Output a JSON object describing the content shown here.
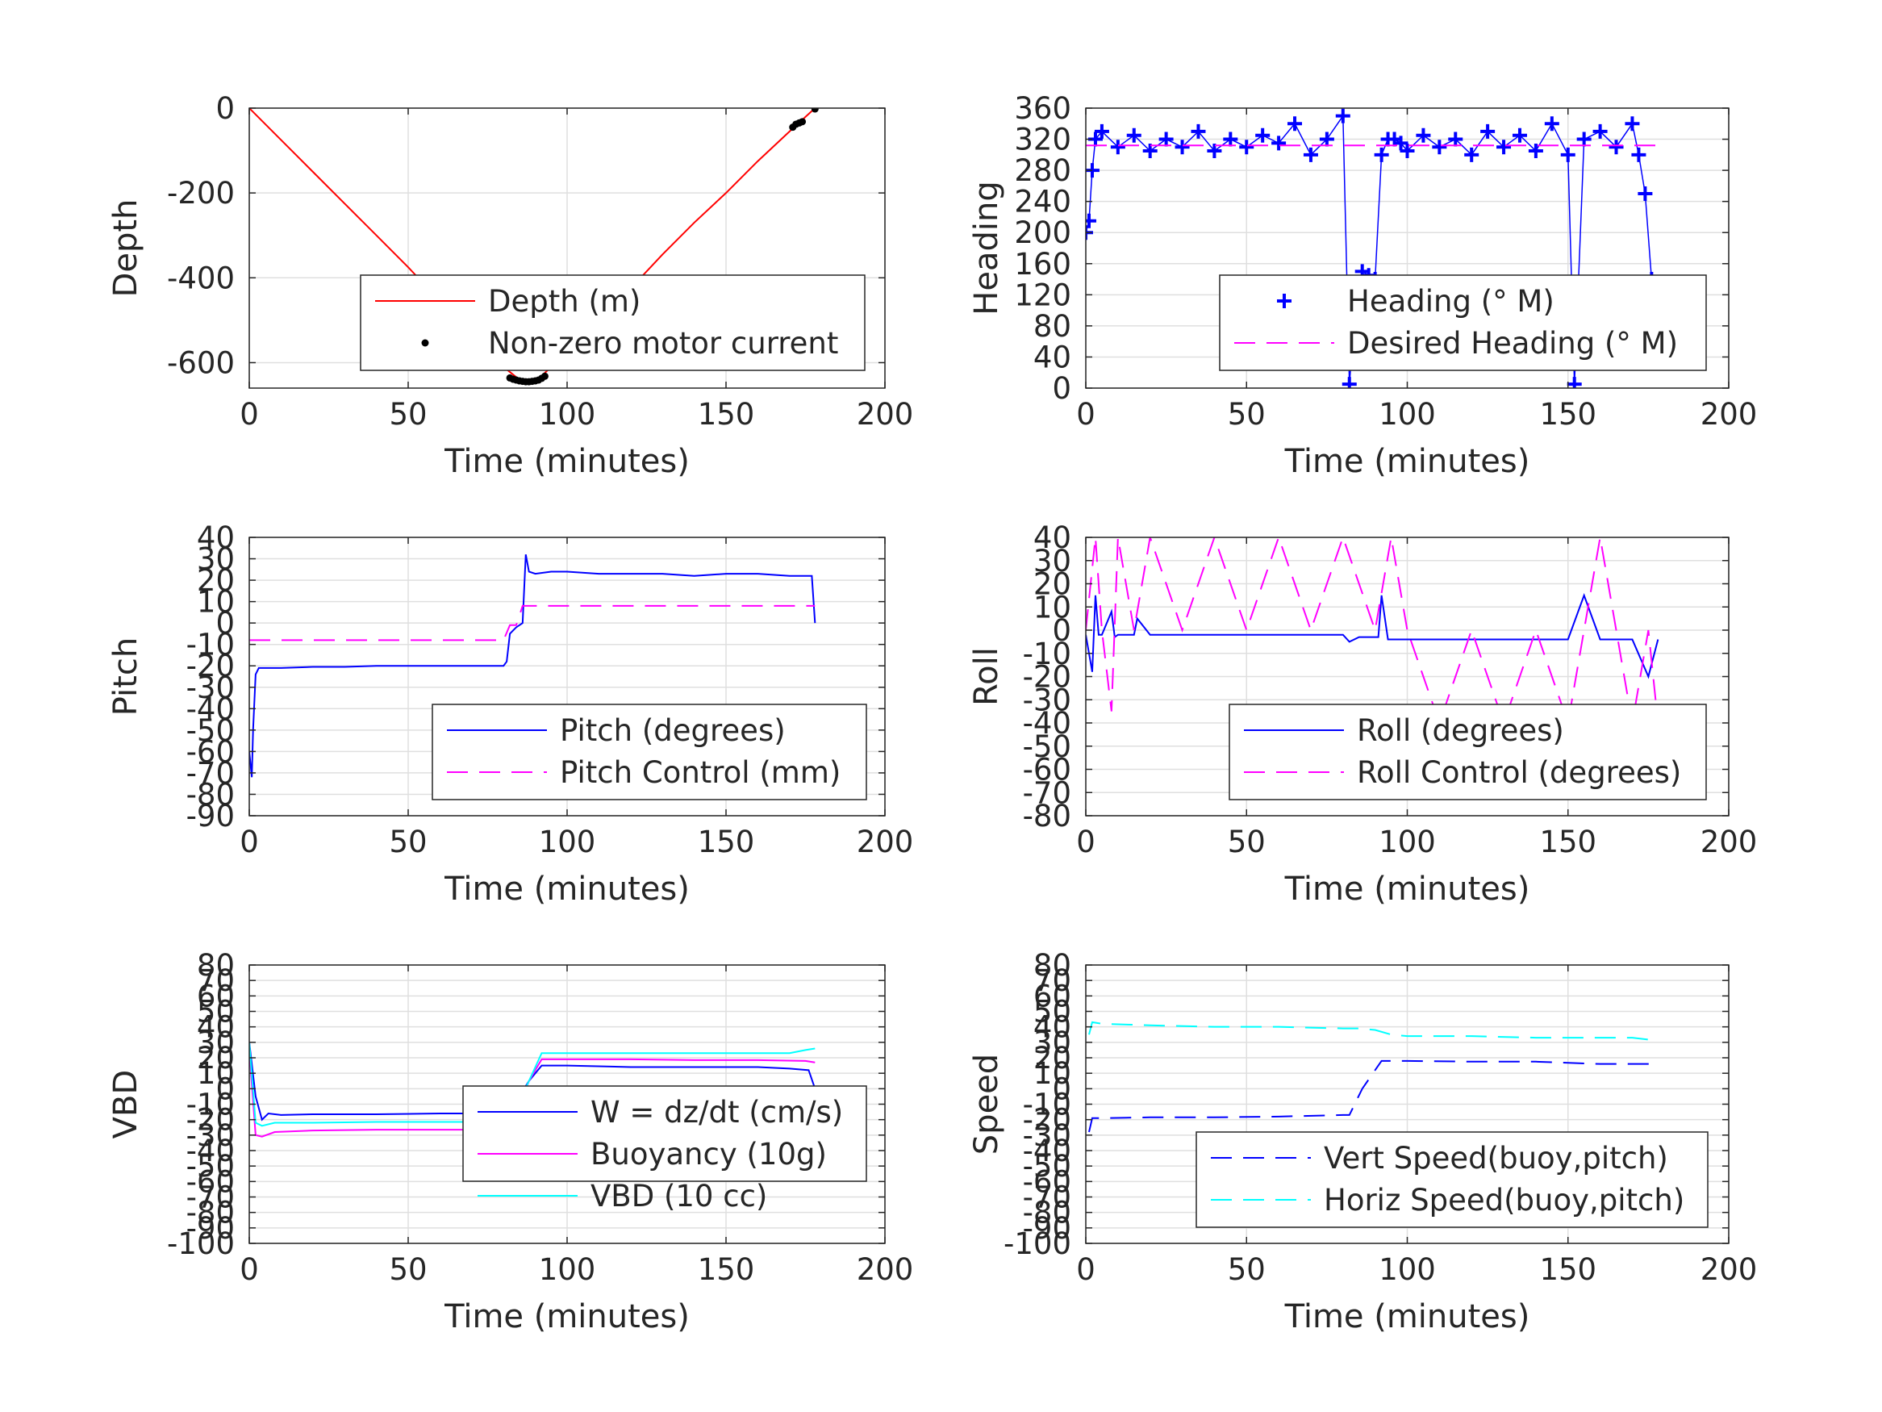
{
  "chart_data": [
    {
      "type": "line",
      "xlabel": "Time (minutes)",
      "ylabel": "Depth",
      "xlim": [
        0,
        200
      ],
      "ylim": [
        -660,
        0
      ],
      "xticks": [
        0,
        50,
        100,
        150,
        200
      ],
      "yticks": [
        0,
        -200,
        -400,
        -600
      ],
      "grid": true,
      "legend_position": "lower-right",
      "series": [
        {
          "name": "Depth (m)",
          "color": "#ff0000",
          "style": "solid",
          "x": [
            0,
            10,
            20,
            30,
            40,
            50,
            60,
            70,
            80,
            85,
            88,
            91,
            95,
            100,
            110,
            120,
            130,
            140,
            150,
            160,
            170,
            178
          ],
          "y": [
            0,
            -75,
            -150,
            -225,
            -300,
            -375,
            -455,
            -530,
            -610,
            -640,
            -645,
            -638,
            -610,
            -575,
            -500,
            -425,
            -345,
            -270,
            -200,
            -125,
            -55,
            0
          ]
        },
        {
          "name": "Non-zero motor current",
          "color": "#000000",
          "style": "points",
          "x": [
            82,
            83,
            84,
            85,
            86,
            87,
            88,
            89,
            90,
            91,
            92,
            93,
            171,
            172,
            173,
            174,
            178
          ],
          "y": [
            -636,
            -639,
            -641,
            -643,
            -644,
            -645,
            -645,
            -644,
            -643,
            -641,
            -637,
            -632,
            -45,
            -38,
            -35,
            -32,
            -2
          ]
        }
      ]
    },
    {
      "type": "line",
      "xlabel": "Time (minutes)",
      "ylabel": "Heading",
      "xlim": [
        0,
        200
      ],
      "ylim": [
        0,
        360
      ],
      "xticks": [
        0,
        50,
        100,
        150,
        200
      ],
      "yticks": [
        0,
        40,
        80,
        120,
        160,
        200,
        240,
        280,
        320,
        360
      ],
      "grid": true,
      "legend_position": "lower-right",
      "series": [
        {
          "name": "Heading (° M)",
          "color": "#0000ff",
          "style": "plus",
          "x": [
            0,
            1,
            2,
            3,
            5,
            10,
            15,
            20,
            25,
            30,
            35,
            40,
            45,
            50,
            55,
            60,
            65,
            70,
            75,
            80,
            82,
            83,
            84,
            86,
            88,
            90,
            92,
            94,
            96,
            98,
            100,
            105,
            110,
            115,
            120,
            125,
            130,
            135,
            140,
            145,
            150,
            152,
            155,
            160,
            165,
            170,
            172,
            174,
            176,
            178
          ],
          "y": [
            200,
            215,
            280,
            320,
            330,
            310,
            325,
            305,
            320,
            310,
            330,
            305,
            320,
            310,
            325,
            315,
            340,
            300,
            320,
            350,
            5,
            60,
            120,
            150,
            145,
            140,
            300,
            320,
            320,
            315,
            305,
            325,
            310,
            320,
            300,
            330,
            310,
            325,
            305,
            340,
            300,
            5,
            320,
            330,
            310,
            340,
            300,
            250,
            140,
            130
          ]
        },
        {
          "name": "Desired Heading (° M)",
          "color": "#ff00ff",
          "style": "dashed",
          "x": [
            0,
            80,
            93,
            178
          ],
          "y": [
            312,
            312,
            312,
            312
          ]
        }
      ]
    },
    {
      "type": "line",
      "xlabel": "Time (minutes)",
      "ylabel": "Pitch",
      "xlim": [
        0,
        200
      ],
      "ylim": [
        -90,
        40
      ],
      "xticks": [
        0,
        50,
        100,
        150,
        200
      ],
      "yticks": [
        40,
        30,
        20,
        10,
        0,
        -10,
        -20,
        -30,
        -40,
        -50,
        -60,
        -70,
        -80,
        -90
      ],
      "grid": true,
      "legend_position": "lower-right",
      "series": [
        {
          "name": "Pitch (degrees)",
          "color": "#0000ff",
          "style": "solid",
          "x": [
            0,
            0.8,
            1.2,
            2,
            3,
            5,
            10,
            20,
            30,
            40,
            50,
            60,
            70,
            80,
            81,
            82,
            84,
            86,
            87,
            88,
            90,
            95,
            100,
            110,
            120,
            130,
            140,
            150,
            160,
            170,
            177,
            178
          ],
          "y": [
            -60,
            -72,
            -50,
            -24,
            -21,
            -21,
            -21,
            -20.5,
            -20.5,
            -20,
            -20,
            -20,
            -20,
            -20,
            -18,
            -5,
            -2,
            0,
            32,
            24,
            23,
            24,
            24,
            23,
            23,
            23,
            22,
            23,
            23,
            22,
            22,
            0
          ]
        },
        {
          "name": "Pitch Control (mm)",
          "color": "#ff00ff",
          "style": "dashed",
          "x": [
            0,
            80,
            82,
            84,
            86,
            88,
            178
          ],
          "y": [
            -8,
            -8,
            -1,
            -1,
            8,
            8,
            8
          ]
        }
      ]
    },
    {
      "type": "line",
      "xlabel": "Time (minutes)",
      "ylabel": "Roll",
      "xlim": [
        0,
        200
      ],
      "ylim": [
        -80,
        40
      ],
      "xticks": [
        0,
        50,
        100,
        150,
        200
      ],
      "yticks": [
        40,
        30,
        20,
        10,
        0,
        -10,
        -20,
        -30,
        -40,
        -50,
        -60,
        -70,
        -80
      ],
      "grid": true,
      "legend_position": "lower-right",
      "series": [
        {
          "name": "Roll (degrees)",
          "color": "#0000ff",
          "style": "solid",
          "x": [
            0,
            2,
            3,
            4,
            5,
            8,
            9,
            10,
            15,
            16,
            20,
            25,
            30,
            35,
            40,
            50,
            55,
            60,
            65,
            70,
            75,
            80,
            82,
            85,
            88,
            91,
            92,
            94,
            96,
            100,
            105,
            110,
            115,
            120,
            130,
            140,
            150,
            155,
            160,
            170,
            175,
            178
          ],
          "y": [
            -2,
            -18,
            15,
            -2,
            -2,
            8,
            -3,
            -2,
            -2,
            5,
            -2,
            -2,
            -2,
            -2,
            -2,
            -2,
            -2,
            -2,
            -2,
            -2,
            -2,
            -2,
            -5,
            -3,
            -3,
            -3,
            15,
            -4,
            -4,
            -4,
            -4,
            -4,
            -4,
            -4,
            -4,
            -4,
            -4,
            15,
            -4,
            -4,
            -20,
            -4
          ]
        },
        {
          "name": "Roll Control (degrees)",
          "color": "#ff00ff",
          "style": "dashed",
          "x": [
            0,
            3,
            5,
            8,
            10,
            15,
            20,
            30,
            40,
            50,
            60,
            70,
            80,
            90,
            95,
            100,
            105,
            110,
            120,
            130,
            140,
            150,
            160,
            170,
            175,
            178
          ],
          "y": [
            0,
            40,
            0,
            -35,
            40,
            0,
            40,
            0,
            40,
            0,
            40,
            0,
            40,
            0,
            40,
            0,
            -20,
            -40,
            0,
            -40,
            0,
            -40,
            40,
            -40,
            0,
            -40
          ]
        }
      ]
    },
    {
      "type": "line",
      "xlabel": "Time (minutes)",
      "ylabel": "VBD",
      "xlim": [
        0,
        200
      ],
      "ylim": [
        -100,
        80
      ],
      "xticks": [
        0,
        50,
        100,
        150,
        200
      ],
      "yticks": [
        80,
        70,
        60,
        50,
        40,
        30,
        20,
        10,
        0,
        -10,
        -20,
        -30,
        -40,
        -50,
        -60,
        -70,
        -80,
        -90,
        -100
      ],
      "grid": true,
      "legend_position": "lower-right",
      "series": [
        {
          "name": "W = dz/dt (cm/s)",
          "color": "#0000ff",
          "style": "solid",
          "x": [
            0,
            2,
            4,
            6,
            10,
            20,
            40,
            60,
            80,
            82,
            88,
            92,
            95,
            100,
            120,
            140,
            160,
            170,
            176,
            178
          ],
          "y": [
            30,
            -5,
            -20,
            -16,
            -17,
            -16.5,
            -16.5,
            -16,
            -16,
            -15,
            5,
            15,
            15,
            15,
            14,
            14,
            14,
            13,
            12,
            0
          ]
        },
        {
          "name": "Buoyancy (10g)",
          "color": "#ff00ff",
          "style": "solid",
          "x": [
            0,
            2,
            4,
            8,
            20,
            40,
            60,
            80,
            82,
            88,
            92,
            100,
            120,
            140,
            160,
            175,
            178
          ],
          "y": [
            25,
            -30,
            -31,
            -28,
            -27,
            -26.5,
            -26.5,
            -26.5,
            -26.5,
            5,
            19,
            19,
            19,
            18.5,
            18.5,
            18,
            17
          ]
        },
        {
          "name": "VBD (10 cc)",
          "color": "#00ffff",
          "style": "solid",
          "x": [
            0,
            2,
            4,
            8,
            20,
            40,
            60,
            80,
            82,
            88,
            92,
            100,
            120,
            140,
            160,
            170,
            175,
            178
          ],
          "y": [
            30,
            -22,
            -24,
            -22,
            -22,
            -21.5,
            -21.5,
            -21.5,
            -21.5,
            5,
            23,
            23,
            23,
            23,
            23,
            23,
            25,
            26
          ]
        }
      ]
    },
    {
      "type": "line",
      "xlabel": "Time (minutes)",
      "ylabel": "Speed",
      "xlim": [
        0,
        200
      ],
      "ylim": [
        -100,
        80
      ],
      "xticks": [
        0,
        50,
        100,
        150,
        200
      ],
      "yticks": [
        80,
        70,
        60,
        50,
        40,
        30,
        20,
        10,
        0,
        -10,
        -20,
        -30,
        -40,
        -50,
        -60,
        -70,
        -80,
        -90,
        -100
      ],
      "grid": true,
      "legend_position": "lower-right",
      "series": [
        {
          "name": "Vert Speed(buoy,pitch)",
          "color": "#0000ff",
          "style": "dashed",
          "x": [
            1,
            2,
            5,
            20,
            40,
            60,
            80,
            82,
            86,
            92,
            95,
            100,
            120,
            140,
            160,
            170,
            178
          ],
          "y": [
            -28,
            -19,
            -19,
            -18.5,
            -18.5,
            -18,
            -17,
            -17,
            0,
            18,
            18,
            18,
            17.5,
            17.5,
            16,
            16,
            16
          ]
        },
        {
          "name": "Horiz Speed(buoy,pitch)",
          "color": "#00ffff",
          "style": "dashed",
          "x": [
            1,
            2,
            5,
            20,
            40,
            60,
            80,
            85,
            90,
            95,
            100,
            120,
            140,
            160,
            170,
            178
          ],
          "y": [
            35,
            43,
            42,
            41,
            40,
            40,
            39,
            39,
            38,
            35,
            34,
            34,
            33,
            33,
            33,
            31
          ]
        }
      ]
    }
  ]
}
